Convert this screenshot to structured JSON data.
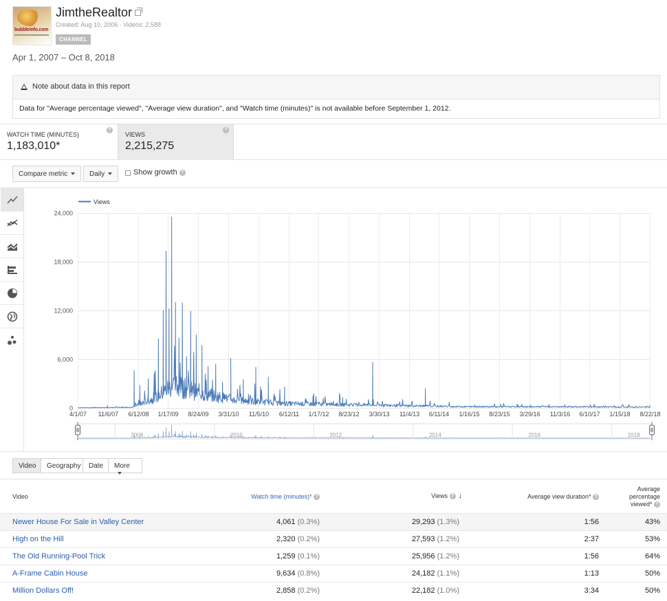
{
  "channel": {
    "title": "JimtheRealtor",
    "thumbnail_text": "bubbleinfo.com",
    "meta": "Created: Aug 10, 2006  ·  Videos: 2,588",
    "badge": "CHANNEL"
  },
  "date_range": "Apr 1, 2007 – Oct 8, 2018",
  "note": {
    "title": "Note about data in this report",
    "body": "Data for \"Average percentage viewed\", \"Average view duration\", and \"Watch time (minutes)\" is not available before September 1, 2012."
  },
  "metrics": [
    {
      "label": "WATCH TIME (MINUTES)",
      "value": "1,183,010*"
    },
    {
      "label": "VIEWS",
      "value": "2,215,275"
    }
  ],
  "controls": {
    "compare_label": "Compare metric",
    "interval_label": "Daily",
    "growth_label": "Show growth"
  },
  "side_icons": [
    "line-chart-icon",
    "multi-line-chart-icon",
    "stacked-area-icon",
    "bar-chart-icon",
    "pie-chart-icon",
    "globe-icon",
    "bubble-chart-icon"
  ],
  "colors": {
    "series": "#4a7ab9",
    "link": "#2a5db0",
    "header_blue": "#3367b3"
  },
  "chart_data": {
    "type": "line",
    "legend": "Views",
    "x_ticks": [
      "4/1/07",
      "11/6/07",
      "6/12/08",
      "1/17/09",
      "8/24/09",
      "3/31/10",
      "11/5/10",
      "6/12/11",
      "1/17/12",
      "8/23/12",
      "3/30/13",
      "11/4/13",
      "6/11/14",
      "1/16/15",
      "8/23/15",
      "3/29/16",
      "11/3/16",
      "6/10/17",
      "1/15/18",
      "8/22/18"
    ],
    "y_ticks": [
      "24,000",
      "18,000",
      "12,000",
      "6,000",
      "0"
    ],
    "ylim": [
      0,
      24000
    ],
    "grid": true,
    "legend_position": "top-left",
    "navigator_years": [
      "2008",
      "2010",
      "2012",
      "2014",
      "2016",
      "2018"
    ],
    "peaks": [
      {
        "date": "2007-11-06",
        "value": 300
      },
      {
        "date": "2008-05-20",
        "value": 4600
      },
      {
        "date": "2008-07-01",
        "value": 2800
      },
      {
        "date": "2008-09-01",
        "value": 3600
      },
      {
        "date": "2008-10-10",
        "value": 1900
      },
      {
        "date": "2008-11-15",
        "value": 8500
      },
      {
        "date": "2008-12-20",
        "value": 12000
      },
      {
        "date": "2009-01-10",
        "value": 19300
      },
      {
        "date": "2009-02-01",
        "value": 12200
      },
      {
        "date": "2009-02-20",
        "value": 23500
      },
      {
        "date": "2009-03-20",
        "value": 13000
      },
      {
        "date": "2009-04-15",
        "value": 8600
      },
      {
        "date": "2009-05-10",
        "value": 12900
      },
      {
        "date": "2009-06-10",
        "value": 6300
      },
      {
        "date": "2009-07-10",
        "value": 11900
      },
      {
        "date": "2009-08-20",
        "value": 9000
      },
      {
        "date": "2009-10-01",
        "value": 7700
      },
      {
        "date": "2009-11-15",
        "value": 5100
      },
      {
        "date": "2010-01-10",
        "value": 5400
      },
      {
        "date": "2010-03-01",
        "value": 3200
      },
      {
        "date": "2010-05-01",
        "value": 6100
      },
      {
        "date": "2010-08-01",
        "value": 3500
      },
      {
        "date": "2010-11-01",
        "value": 5000
      },
      {
        "date": "2011-02-01",
        "value": 3800
      },
      {
        "date": "2011-06-01",
        "value": 2600
      },
      {
        "date": "2012-01-01",
        "value": 1800
      },
      {
        "date": "2012-08-01",
        "value": 1300
      },
      {
        "date": "2013-03-10",
        "value": 5600
      },
      {
        "date": "2014-04-01",
        "value": 2400
      },
      {
        "date": "2018-10-08",
        "value": 250
      }
    ]
  },
  "table": {
    "tabs": [
      "Video",
      "Geography",
      "Date",
      "More"
    ],
    "headers": {
      "video": "Video",
      "watch": "Watch time (minutes)*",
      "views": "Views",
      "avg_duration": "Average view duration*",
      "avg_pct": "Average percentage viewed*"
    },
    "rows": [
      {
        "title": "Newer House For Sale in Valley Center",
        "watch": "4,061",
        "watch_pct": "(0.3%)",
        "views": "29,293",
        "views_pct": "(1.3%)",
        "duration": "1:56",
        "pct": "43%"
      },
      {
        "title": "High on the Hill",
        "watch": "2,320",
        "watch_pct": "(0.2%)",
        "views": "27,593",
        "views_pct": "(1.2%)",
        "duration": "2:37",
        "pct": "53%"
      },
      {
        "title": "The Old Running-Pool Trick",
        "watch": "1,259",
        "watch_pct": "(0.1%)",
        "views": "25,956",
        "views_pct": "(1.2%)",
        "duration": "1:56",
        "pct": "64%"
      },
      {
        "title": "A-Frame Cabin House",
        "watch": "9,634",
        "watch_pct": "(0.8%)",
        "views": "24,182",
        "views_pct": "(1.1%)",
        "duration": "1:13",
        "pct": "50%"
      },
      {
        "title": "Million Dollars Off!",
        "watch": "2,858",
        "watch_pct": "(0.2%)",
        "views": "22,182",
        "views_pct": "(1.0%)",
        "duration": "3:34",
        "pct": "50%"
      }
    ]
  }
}
